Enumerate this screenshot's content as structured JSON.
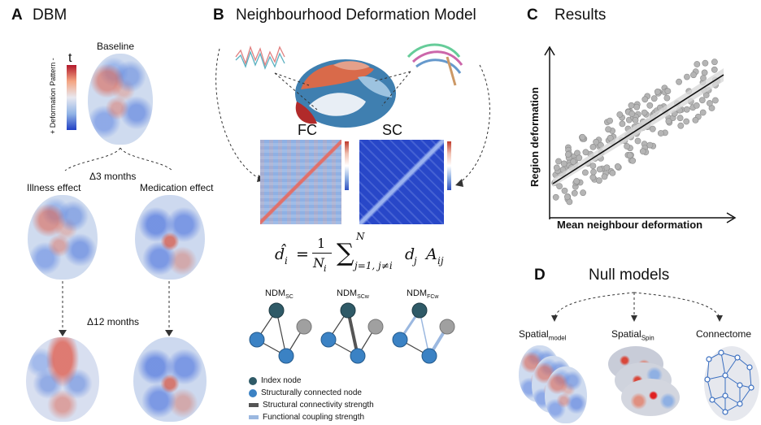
{
  "panels": {
    "a": {
      "letter": "A",
      "title": "DBM",
      "baseline": "Baseline",
      "cbar_symbol": "t",
      "cbar_label": "+ Deformation Pattern -",
      "delta3": "Δ3 months",
      "illness": "Illness effect",
      "medication": "Medication effect",
      "delta12": "Δ12 months"
    },
    "b": {
      "letter": "B",
      "title": "Neighbourhood Deformation Model",
      "fc": "FC",
      "sc": "SC",
      "equation": {
        "lhs": "d̂",
        "lhs_sub": "i",
        "eq": "=",
        "num": "1",
        "den": "N",
        "den_sub": "i",
        "sum_top": "N",
        "sum_bottom": "j=1, j≠i",
        "term": "d",
        "term_sub": "j",
        "matrix": "A",
        "matrix_sub": "ij"
      },
      "ndm": [
        {
          "main": "NDM",
          "sub": "SC"
        },
        {
          "main": "NDM",
          "sub": "SCw"
        },
        {
          "main": "NDM",
          "sub": "FCw"
        }
      ],
      "legend": [
        {
          "label": "Index node",
          "icon": "dark-teal-circle",
          "color": "#2f5a67"
        },
        {
          "label": "Structurally connected node",
          "icon": "blue-circle",
          "color": "#3b82c4"
        },
        {
          "label": "Structural connectivity strength",
          "icon": "gray-bar",
          "color": "#555555"
        },
        {
          "label": "Functional coupling strength",
          "icon": "light-blue-bar",
          "color": "#9bb8e0"
        }
      ]
    },
    "c": {
      "letter": "C",
      "title": "Results",
      "ylabel": "Region deformation",
      "xlabel": "Mean neighbour deformation"
    },
    "d": {
      "letter": "D",
      "title": "Null models",
      "spatial_model": {
        "main": "Spatial",
        "sub": "model"
      },
      "spatial_spin": {
        "main": "Spatial",
        "sub": "Spin"
      },
      "connectome": "Connectome"
    }
  },
  "colors": {
    "red": "#d9473a",
    "blue": "#3b63c9",
    "node_dark": "#2f5a67",
    "node_blue": "#3b82c4",
    "node_gray": "#a0a0a0",
    "scatter": "#b5b5b5"
  }
}
